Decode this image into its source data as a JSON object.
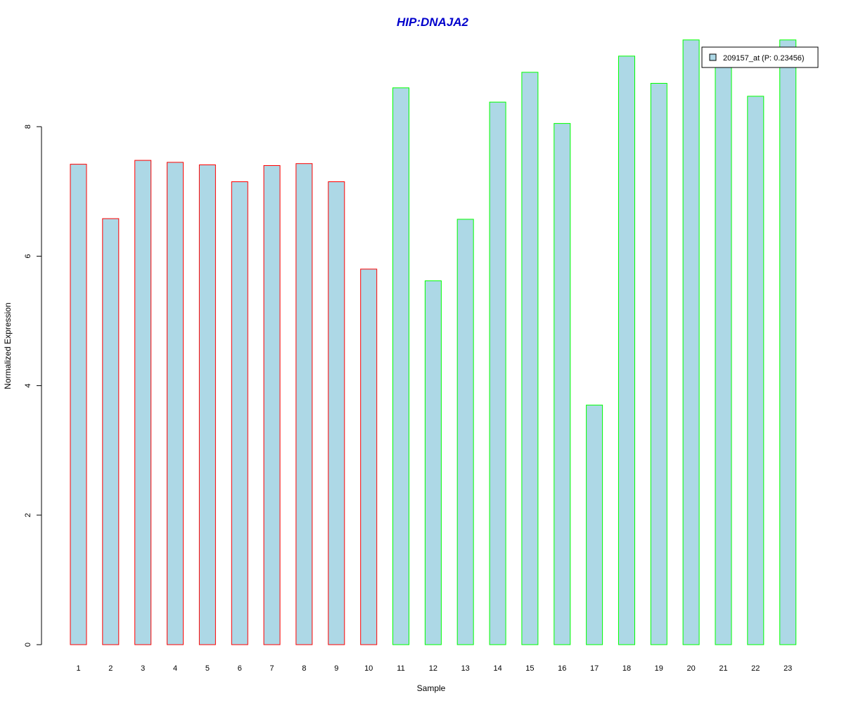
{
  "chart_data": {
    "type": "bar",
    "title": "HIP:DNAJA2",
    "xlabel": "Sample",
    "ylabel": "Normalized Expression",
    "categories": [
      "1",
      "2",
      "3",
      "4",
      "5",
      "6",
      "7",
      "8",
      "9",
      "10",
      "11",
      "12",
      "13",
      "14",
      "15",
      "16",
      "17",
      "18",
      "19",
      "20",
      "21",
      "22",
      "23"
    ],
    "series": [
      {
        "name": "209157_at (P: 0.23456)",
        "values": [
          7.42,
          6.58,
          7.48,
          7.45,
          7.41,
          7.15,
          7.4,
          7.43,
          7.15,
          5.8,
          8.6,
          5.62,
          6.57,
          8.38,
          8.84,
          8.05,
          3.7,
          9.09,
          8.67,
          9.34,
          8.95,
          8.47,
          9.34
        ]
      }
    ],
    "border_colors": [
      "#ff0000",
      "#ff0000",
      "#ff0000",
      "#ff0000",
      "#ff0000",
      "#ff0000",
      "#ff0000",
      "#ff0000",
      "#ff0000",
      "#ff0000",
      "#00ff00",
      "#00ff00",
      "#00ff00",
      "#00ff00",
      "#00ff00",
      "#00ff00",
      "#00ff00",
      "#00ff00",
      "#00ff00",
      "#00ff00",
      "#00ff00",
      "#00ff00",
      "#00ff00"
    ],
    "fill_color": "#add8e6",
    "title_color": "#0000cc",
    "y_ticks": [
      0,
      2,
      4,
      6,
      8
    ],
    "ylim": [
      0,
      9.34
    ],
    "grid": false,
    "legend_position": "top-right"
  }
}
